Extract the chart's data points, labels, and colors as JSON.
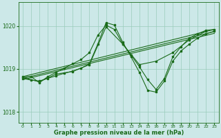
{
  "bg_color": "#cce8e8",
  "grid_color": "#99ccbb",
  "line_color": "#1a6b1a",
  "xlabel": "Graphe pression niveau de la mer (hPa)",
  "ylim": [
    1017.75,
    1020.55
  ],
  "xlim": [
    -0.5,
    23.5
  ],
  "yticks": [
    1018,
    1019,
    1020
  ],
  "xticks": [
    0,
    1,
    2,
    3,
    4,
    5,
    6,
    7,
    8,
    9,
    10,
    11,
    12,
    13,
    14,
    15,
    16,
    17,
    18,
    19,
    20,
    21,
    22,
    23
  ],
  "trend_lines": [
    {
      "x": [
        0,
        23
      ],
      "y": [
        1018.82,
        1019.92
      ]
    },
    {
      "x": [
        0,
        23
      ],
      "y": [
        1018.78,
        1019.87
      ]
    },
    {
      "x": [
        0,
        23
      ],
      "y": [
        1018.75,
        1019.83
      ]
    }
  ],
  "main_line": {
    "x": [
      0,
      1,
      2,
      3,
      4,
      5,
      6,
      7,
      8,
      9,
      10,
      11,
      12,
      13,
      14,
      15,
      16,
      17,
      18,
      19,
      20,
      21,
      22,
      23
    ],
    "y": [
      1018.82,
      1018.82,
      1018.68,
      1018.82,
      1018.92,
      1019.02,
      1019.12,
      1019.22,
      1019.38,
      1019.78,
      1020.02,
      1019.92,
      1019.58,
      1019.32,
      1019.05,
      1018.75,
      1018.52,
      1018.78,
      1019.28,
      1019.52,
      1019.72,
      1019.82,
      1019.9,
      1019.92
    ]
  },
  "second_line": {
    "x": [
      0,
      1,
      2,
      3,
      4,
      5,
      6,
      7,
      8,
      9,
      10,
      11,
      12,
      13,
      14,
      15,
      16,
      17,
      18,
      19,
      20,
      21,
      22,
      23
    ],
    "y": [
      1018.78,
      1018.74,
      1018.72,
      1018.78,
      1018.84,
      1018.9,
      1018.95,
      1019.02,
      1019.12,
      1019.58,
      1020.08,
      1020.02,
      1019.62,
      1019.28,
      1018.92,
      1018.5,
      1018.46,
      1018.72,
      1019.18,
      1019.42,
      1019.58,
      1019.72,
      1019.82,
      1019.88
    ]
  },
  "third_line": {
    "x": [
      0,
      2,
      4,
      6,
      8,
      10,
      12,
      14,
      16,
      18,
      20,
      22
    ],
    "y": [
      1018.8,
      1018.7,
      1018.88,
      1018.94,
      1019.1,
      1019.98,
      1019.58,
      1019.1,
      1019.18,
      1019.38,
      1019.68,
      1019.88
    ]
  }
}
